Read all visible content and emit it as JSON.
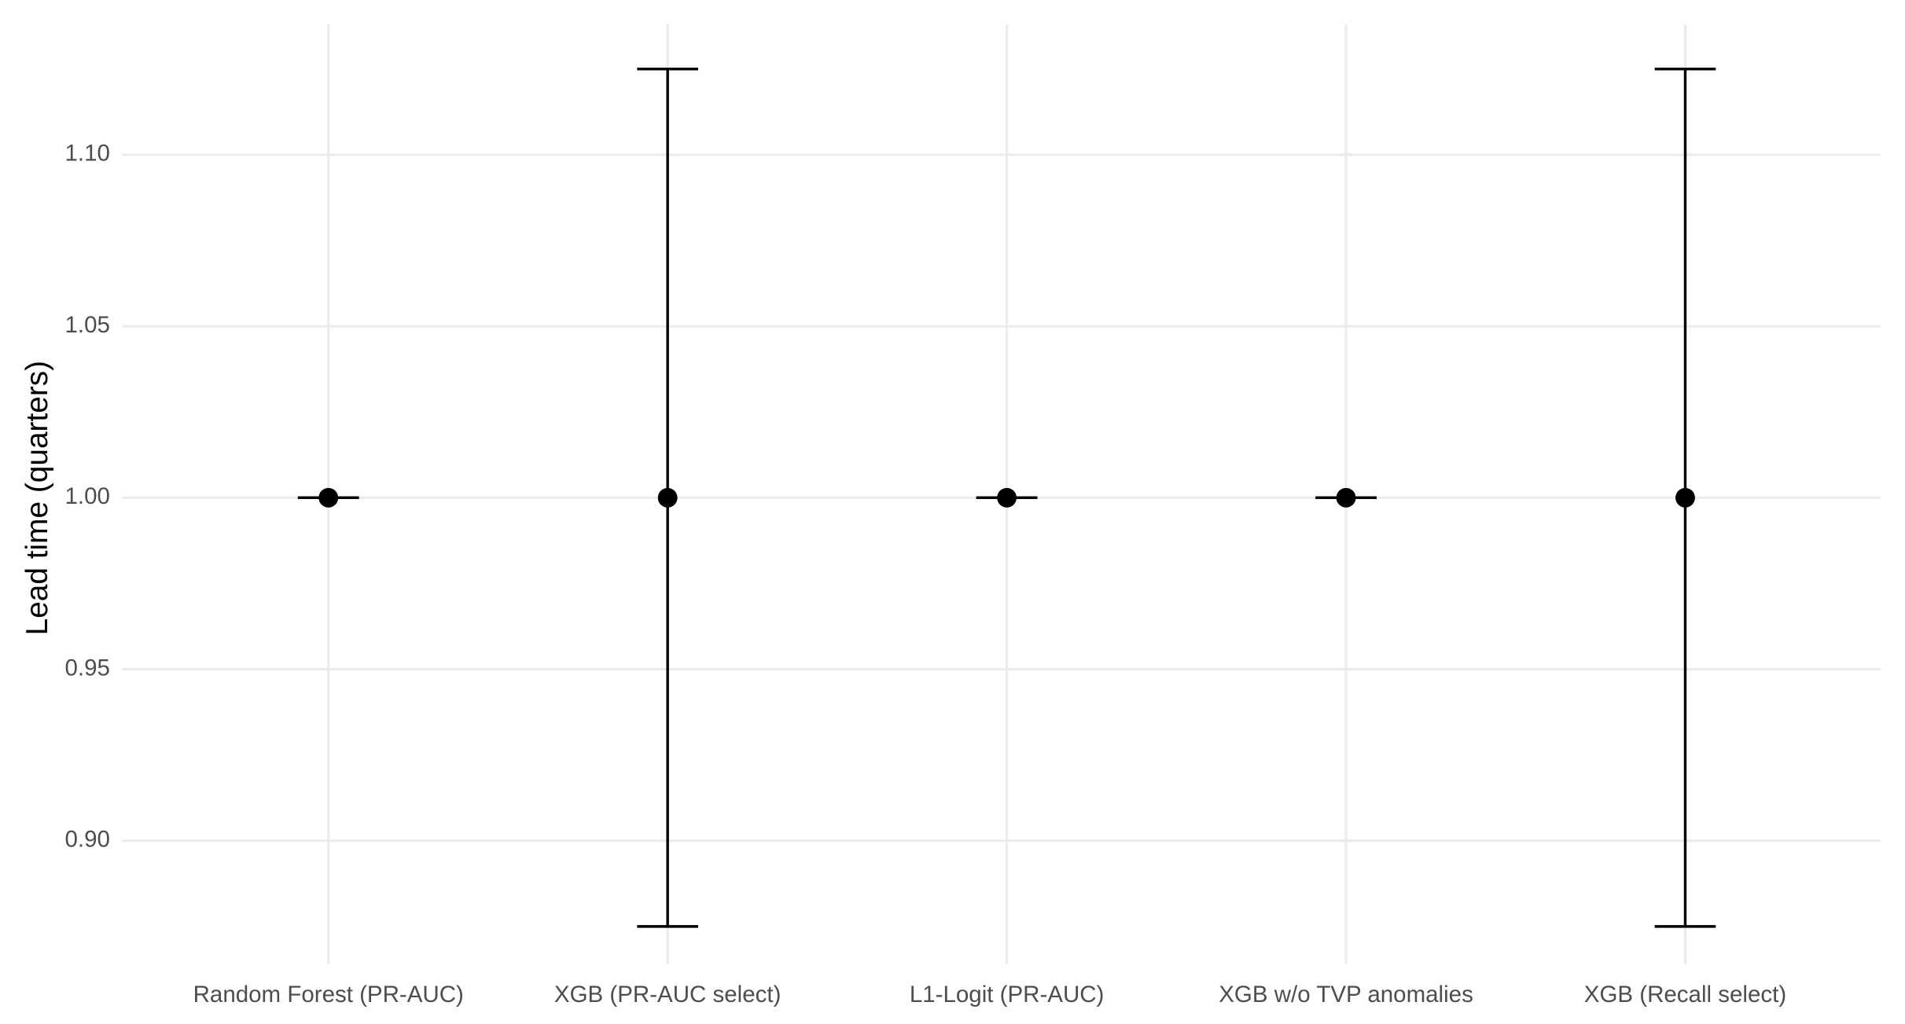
{
  "chart_data": {
    "type": "errorbar",
    "y_label": "Lead time (quarters)",
    "categories": [
      "Random Forest (PR-AUC)",
      "XGB (PR-AUC select)",
      "L1-Logit (PR-AUC)",
      "XGB w/o TVP anomalies",
      "XGB (Recall select)"
    ],
    "values": [
      1.0,
      1.0,
      1.0,
      1.0,
      1.0
    ],
    "errors": [
      0,
      0.125,
      0,
      0,
      0.125
    ],
    "color": "#000000",
    "ylim": [
      0.864,
      1.138
    ],
    "yticks": [
      {
        "value": 0.9,
        "label": "0.90"
      },
      {
        "value": 0.95,
        "label": "0.95"
      },
      {
        "value": 1.0,
        "label": "1.00"
      },
      {
        "value": 1.05,
        "label": "1.05"
      },
      {
        "value": 1.1,
        "label": "1.10"
      }
    ],
    "grid": true
  }
}
